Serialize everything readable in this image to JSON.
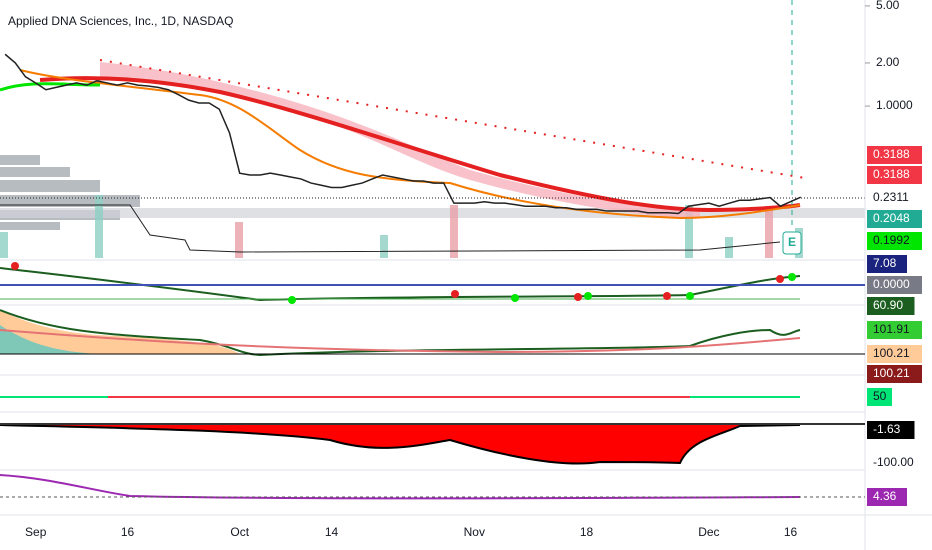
{
  "header": {
    "title": "Applied DNA Sciences, Inc., 1D, NASDAQ"
  },
  "chart_data": {
    "type": "line",
    "log_scale": true,
    "color": "#222222",
    "categories": [
      null,
      null,
      null,
      "Sep",
      null,
      null,
      null,
      null,
      null,
      null,
      null,
      null,
      "16",
      null,
      null,
      null,
      null,
      null,
      null,
      null,
      null,
      null,
      null,
      "Oct",
      null,
      null,
      null,
      null,
      null,
      null,
      null,
      null,
      "14",
      null,
      null,
      null,
      null,
      null,
      null,
      null,
      null,
      null,
      null,
      null,
      null,
      null,
      "Nov",
      null,
      null,
      null,
      null,
      null,
      null,
      null,
      null,
      null,
      null,
      "18",
      null,
      null,
      null,
      null,
      null,
      null,
      null,
      null,
      null,
      null,
      null,
      "Dec",
      null,
      null,
      null,
      null,
      null,
      null,
      null,
      "16",
      null
    ],
    "values": [
      2.3,
      2.0,
      1.6,
      1.45,
      1.3,
      1.35,
      1.4,
      1.45,
      1.4,
      1.5,
      1.45,
      1.4,
      1.45,
      1.4,
      1.38,
      1.35,
      1.3,
      1.2,
      1.1,
      1.05,
      1.05,
      0.95,
      0.65,
      0.34,
      0.33,
      0.33,
      0.34,
      0.33,
      0.32,
      0.31,
      0.29,
      0.28,
      0.27,
      0.27,
      0.28,
      0.29,
      0.31,
      0.33,
      0.32,
      0.31,
      0.3,
      0.3,
      0.29,
      0.29,
      0.21,
      0.21,
      0.21,
      0.215,
      0.21,
      0.21,
      0.205,
      0.2,
      0.2,
      0.2,
      0.195,
      0.195,
      0.19,
      0.19,
      0.19,
      0.185,
      0.185,
      0.185,
      0.185,
      0.18,
      0.18,
      0.18,
      0.178,
      0.2,
      0.205,
      0.21,
      0.2,
      0.21,
      0.22,
      0.22,
      0.225,
      0.23,
      0.2,
      0.215,
      0.2311
    ],
    "ylim": [
      0.087,
      5.5
    ],
    "yticks": [
      {
        "value": 5,
        "label": "5.00"
      },
      {
        "value": 2,
        "label": "2.00"
      },
      {
        "value": 1,
        "label": "1.0000"
      }
    ],
    "price_tags": [
      {
        "label": "0.3188",
        "color": "#f23645"
      },
      {
        "label": "0.3188",
        "color": "#f23645"
      },
      {
        "label": "0.2311",
        "color": "#ffffff"
      },
      {
        "label": "0.2048",
        "color": "#22ab94"
      },
      {
        "label": "0.1992",
        "color": "#00e600"
      },
      {
        "label": "7.08",
        "color": "#1a237e"
      },
      {
        "label": "0.0000",
        "color": "#787b86"
      },
      {
        "label": "60.90",
        "color": "#1b5e20"
      },
      {
        "label": "101.91",
        "color": "#33cc33"
      },
      {
        "label": "100.21",
        "color": "#ffcc99"
      },
      {
        "label": "100.21",
        "color": "#8b1a1a"
      },
      {
        "label": "50",
        "color": "#00e676"
      },
      {
        "label": "-1.63",
        "color": "#000000"
      },
      {
        "label": "-100.00",
        "color": "#ffffff"
      },
      {
        "label": "4.36",
        "color": "#9c27b0"
      }
    ]
  }
}
